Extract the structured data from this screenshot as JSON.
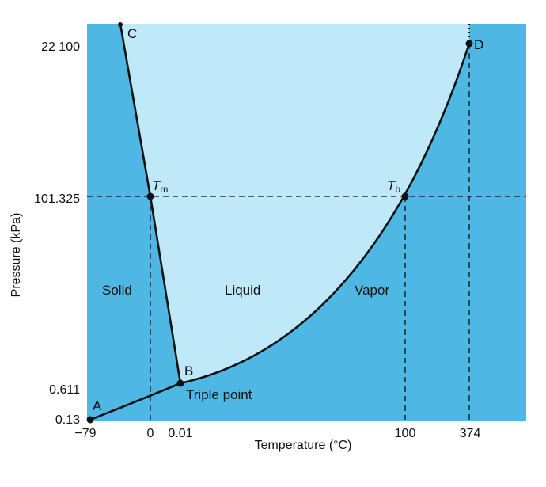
{
  "diagram": {
    "xlabel": "Temperature (°C)",
    "ylabel": "Pressure (kPa)",
    "x_ticks": [
      "−79",
      "0",
      "0.01",
      "100",
      "374"
    ],
    "y_ticks": [
      "22 100",
      "101.325",
      "0.611",
      "0.13"
    ],
    "regions": {
      "solid": "Solid",
      "liquid": "Liquid",
      "vapor": "Vapor"
    },
    "points": {
      "a": "A",
      "b": "B",
      "c": "C",
      "d": "D",
      "tm_main": "T",
      "tm_sub": "m",
      "tb_main": "T",
      "tb_sub": "b",
      "triple": "Triple point"
    },
    "colors": {
      "solid_vapor": "#4fb7e3",
      "liquid": "#bfe8f8",
      "border": "#2a7fb0",
      "line": "#111111"
    }
  }
}
